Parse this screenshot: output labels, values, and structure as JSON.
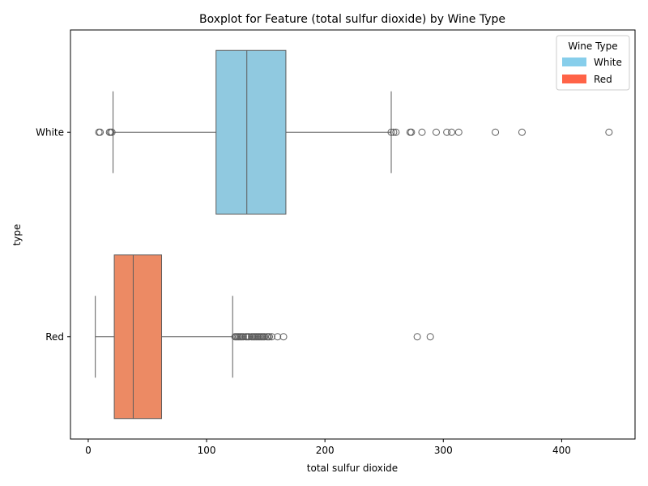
{
  "chart_data": {
    "type": "boxplot",
    "title": "Boxplot for Feature (total sulfur dioxide) by Wine Type",
    "xlabel": "total sulfur dioxide",
    "ylabel": "type",
    "xlim": [
      -15,
      462
    ],
    "xticks": [
      0,
      100,
      200,
      300,
      400
    ],
    "grid": false,
    "legend": {
      "title": "Wine Type",
      "placement": "top-right",
      "entries": [
        {
          "label": "White",
          "color": "#87ceeb"
        },
        {
          "label": "Red",
          "color": "#ff6347"
        }
      ]
    },
    "categories": [
      "White",
      "Red"
    ],
    "series": [
      {
        "name": "White",
        "box_color": "#90c9e0",
        "q1": 108,
        "median": 134,
        "q3": 167,
        "whisker_low": 21,
        "whisker_high": 256,
        "outliers": [
          9,
          10,
          18,
          19,
          20,
          256,
          258,
          260,
          272,
          273,
          282,
          294,
          303,
          307,
          313,
          344,
          366.5,
          440
        ]
      },
      {
        "name": "Red",
        "box_color": "#ec8a64",
        "q1": 22,
        "median": 38,
        "q3": 62,
        "whisker_low": 6,
        "whisker_high": 122,
        "outliers": [
          124,
          125,
          126,
          127,
          128,
          129,
          130,
          131,
          133,
          134,
          135,
          136,
          138,
          139,
          140,
          141,
          142,
          143,
          144,
          145,
          146,
          147,
          148,
          149,
          151,
          152,
          153,
          155,
          160,
          165,
          278,
          289
        ]
      }
    ]
  }
}
